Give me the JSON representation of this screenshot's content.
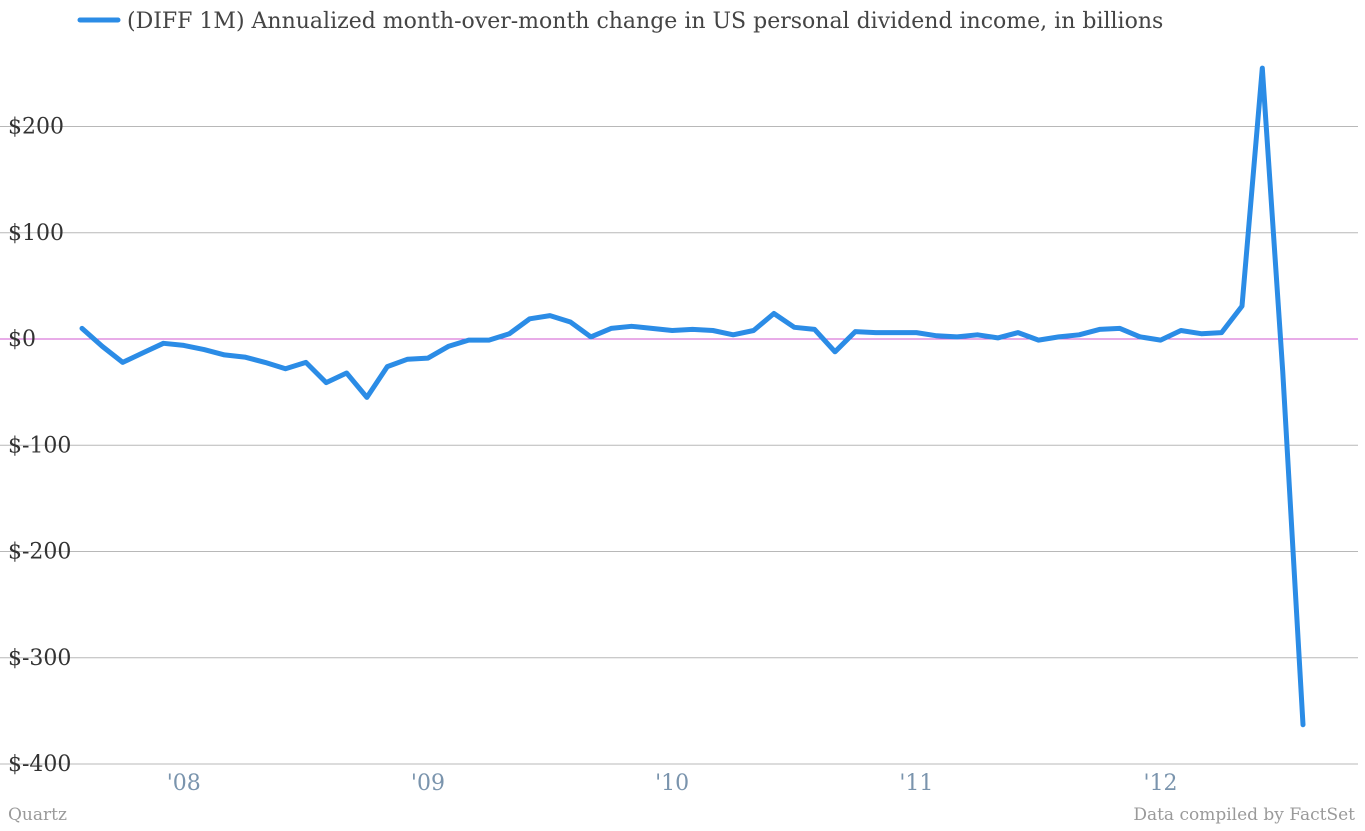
{
  "chart_data": {
    "type": "line",
    "series": [
      {
        "name": "(DIFF 1M) Annualized month-over-month change in US personal dividend income, in billions",
        "color": "#2b8ce6",
        "x": [
          "2007-08",
          "2007-09",
          "2007-10",
          "2007-11",
          "2007-12",
          "2008-01",
          "2008-02",
          "2008-03",
          "2008-04",
          "2008-05",
          "2008-06",
          "2008-07",
          "2008-08",
          "2008-09",
          "2008-10",
          "2008-11",
          "2008-12",
          "2009-01",
          "2009-02",
          "2009-03",
          "2009-04",
          "2009-05",
          "2009-06",
          "2009-07",
          "2009-08",
          "2009-09",
          "2009-10",
          "2009-11",
          "2009-12",
          "2010-01",
          "2010-02",
          "2010-03",
          "2010-04",
          "2010-05",
          "2010-06",
          "2010-07",
          "2010-08",
          "2010-09",
          "2010-10",
          "2010-11",
          "2010-12",
          "2011-01",
          "2011-02",
          "2011-03",
          "2011-04",
          "2011-05",
          "2011-06",
          "2011-07",
          "2011-08",
          "2011-09",
          "2011-10",
          "2011-11",
          "2011-12",
          "2012-01",
          "2012-02",
          "2012-03",
          "2012-04",
          "2012-05",
          "2012-06",
          "2012-07",
          "2012-08"
        ],
        "values": [
          10,
          -7,
          -22,
          -13,
          -4,
          -6,
          -10,
          -15,
          -17,
          -22,
          -28,
          -22,
          -41,
          -32,
          -55,
          -26,
          -19,
          -18,
          -7,
          -1,
          -1,
          5,
          19,
          22,
          16,
          2,
          10,
          12,
          10,
          8,
          9,
          8,
          4,
          8,
          24,
          11,
          9,
          -12,
          7,
          6,
          6,
          6,
          3,
          2,
          4,
          1,
          6,
          -1,
          2,
          4,
          9,
          10,
          2,
          -1,
          8,
          5,
          6,
          31,
          255,
          -30,
          -363
        ]
      }
    ],
    "yticks": [
      200,
      100,
      0,
      -100,
      -200,
      -300,
      -400
    ],
    "ytick_labels": [
      "$200",
      "$100",
      "$0",
      "$-100",
      "$-200",
      "$-300",
      "$-400"
    ],
    "xticks": [
      "2008-01",
      "2009-01",
      "2010-01",
      "2011-01",
      "2012-01"
    ],
    "xtick_labels": [
      "'08",
      "'09",
      "'10",
      "'11",
      "'12"
    ],
    "ylim": [
      -400,
      255
    ],
    "xlim": [
      "2007-08",
      "2012-08"
    ],
    "grid": true,
    "legend_position": "top-left",
    "zero_line_color": "#d25ad2"
  },
  "footer": {
    "source_left": "Quartz",
    "source_right": "Data compiled by FactSet"
  }
}
